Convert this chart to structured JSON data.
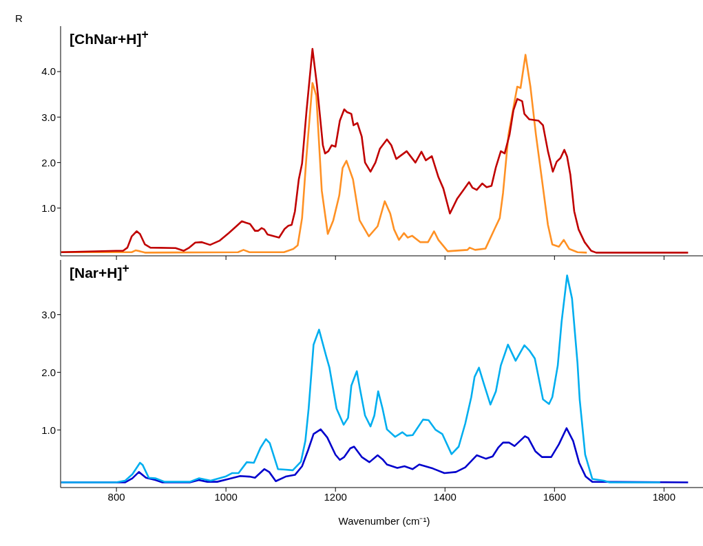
{
  "chart_data": [
    {
      "type": "line",
      "title": "[ChNar+H]$^{+}$",
      "ylabel": "R",
      "xlim": [
        698,
        1880
      ],
      "xticks": [
        800,
        1000,
        1200,
        1400,
        1600,
        1800
      ],
      "ylim": [
        -0.05,
        5.0
      ],
      "yticks": [
        {
          "value": 1,
          "label": "1.0"
        },
        {
          "value": 2,
          "label": "2.0"
        },
        {
          "value": 3,
          "label": "3.0"
        },
        {
          "value": 4,
          "label": "4.0"
        }
      ],
      "tick_labels": "y",
      "line_style": "solid",
      "series": [
        {
          "color": "#ff9124",
          "x": [
            699,
            828,
            835,
            843,
            852,
            1022,
            1032,
            1043,
            1106,
            1123,
            1131,
            1139,
            1147,
            1158,
            1165,
            1175,
            1186,
            1196,
            1207,
            1213,
            1220,
            1232,
            1244,
            1261,
            1277,
            1290,
            1300,
            1307,
            1316,
            1325,
            1332,
            1340,
            1355,
            1369,
            1380,
            1388,
            1405,
            1441,
            1445,
            1455,
            1474,
            1491,
            1500,
            1506,
            1516,
            1532,
            1538,
            1547,
            1556,
            1566,
            1577,
            1588,
            1596,
            1608,
            1617,
            1627,
            1642,
            1659
          ],
          "values": [
            0.03,
            0.03,
            0.07,
            0.05,
            0.02,
            0.03,
            0.08,
            0.03,
            0.03,
            0.1,
            0.18,
            0.78,
            2.13,
            3.75,
            3.47,
            1.38,
            0.43,
            0.73,
            1.28,
            1.88,
            2.04,
            1.63,
            0.73,
            0.38,
            0.6,
            1.15,
            0.88,
            0.53,
            0.3,
            0.45,
            0.35,
            0.39,
            0.25,
            0.25,
            0.49,
            0.3,
            0.05,
            0.08,
            0.13,
            0.08,
            0.11,
            0.55,
            0.78,
            1.33,
            2.62,
            3.67,
            3.64,
            4.37,
            3.67,
            2.62,
            1.63,
            0.63,
            0.2,
            0.15,
            0.3,
            0.1,
            0.03,
            0.02
          ]
        },
        {
          "color": "#c00000",
          "x": [
            699,
            799,
            812,
            820,
            828,
            837,
            843,
            852,
            862,
            908,
            923,
            933,
            944,
            956,
            971,
            988,
            1005,
            1019,
            1029,
            1036,
            1044,
            1053,
            1059,
            1065,
            1070,
            1076,
            1097,
            1107,
            1114,
            1120,
            1126,
            1133,
            1139,
            1147,
            1158,
            1166,
            1177,
            1181,
            1187,
            1193,
            1200,
            1208,
            1216,
            1221,
            1229,
            1233,
            1240,
            1248,
            1254,
            1264,
            1273,
            1281,
            1294,
            1302,
            1311,
            1330,
            1346,
            1357,
            1365,
            1376,
            1388,
            1397,
            1409,
            1422,
            1434,
            1444,
            1450,
            1458,
            1468,
            1476,
            1485,
            1493,
            1502,
            1509,
            1518,
            1525,
            1532,
            1541,
            1545,
            1554,
            1571,
            1579,
            1588,
            1597,
            1604,
            1611,
            1618,
            1623,
            1629,
            1636,
            1644,
            1655,
            1667,
            1676,
            1844
          ],
          "values": [
            0.03,
            0.06,
            0.06,
            0.13,
            0.38,
            0.49,
            0.43,
            0.2,
            0.13,
            0.12,
            0.06,
            0.13,
            0.24,
            0.25,
            0.19,
            0.28,
            0.45,
            0.6,
            0.71,
            0.68,
            0.65,
            0.5,
            0.5,
            0.56,
            0.53,
            0.42,
            0.35,
            0.54,
            0.61,
            0.63,
            0.93,
            1.63,
            1.98,
            3.12,
            4.5,
            3.72,
            2.38,
            2.2,
            2.25,
            2.38,
            2.35,
            2.92,
            3.17,
            3.11,
            3.07,
            2.82,
            2.87,
            2.57,
            2.0,
            1.8,
            2.0,
            2.3,
            2.51,
            2.38,
            2.08,
            2.25,
            2.0,
            2.24,
            2.05,
            2.14,
            1.68,
            1.43,
            0.88,
            1.2,
            1.4,
            1.57,
            1.45,
            1.4,
            1.54,
            1.46,
            1.49,
            1.9,
            2.25,
            2.2,
            2.62,
            3.15,
            3.4,
            3.35,
            3.07,
            2.95,
            2.92,
            2.82,
            2.25,
            1.8,
            2.02,
            2.1,
            2.28,
            2.13,
            1.73,
            0.93,
            0.53,
            0.25,
            0.06,
            0.02,
            0.02
          ]
        }
      ]
    },
    {
      "type": "line",
      "title": "[Nar+H]$^{+}$",
      "xlabel": "Wavenumber (cm⁻¹)",
      "xlim": [
        698,
        1880
      ],
      "xticks": [
        800,
        1000,
        1200,
        1400,
        1600,
        1800
      ],
      "ylim": [
        0,
        3.95
      ],
      "yticks": [
        {
          "value": 1,
          "label": "1.0"
        },
        {
          "value": 2,
          "label": "2.0"
        },
        {
          "value": 3,
          "label": "3.0"
        }
      ],
      "line_style": "solid",
      "series": [
        {
          "color": "#0000cc",
          "x": [
            699,
            816,
            829,
            841,
            854,
            871,
            884,
            934,
            951,
            966,
            984,
            1005,
            1026,
            1043,
            1053,
            1070,
            1079,
            1091,
            1109,
            1126,
            1139,
            1150,
            1160,
            1173,
            1185,
            1200,
            1208,
            1216,
            1227,
            1234,
            1248,
            1262,
            1277,
            1286,
            1294,
            1313,
            1326,
            1341,
            1353,
            1378,
            1399,
            1420,
            1437,
            1458,
            1475,
            1487,
            1497,
            1506,
            1517,
            1527,
            1546,
            1552,
            1565,
            1577,
            1594,
            1608,
            1622,
            1634,
            1645,
            1657,
            1669,
            1844
          ],
          "values": [
            0.09,
            0.09,
            0.16,
            0.27,
            0.17,
            0.13,
            0.09,
            0.09,
            0.13,
            0.1,
            0.1,
            0.15,
            0.2,
            0.19,
            0.17,
            0.32,
            0.27,
            0.11,
            0.19,
            0.22,
            0.37,
            0.65,
            0.93,
            1.01,
            0.87,
            0.57,
            0.48,
            0.53,
            0.68,
            0.71,
            0.53,
            0.44,
            0.56,
            0.49,
            0.4,
            0.34,
            0.37,
            0.32,
            0.4,
            0.33,
            0.25,
            0.27,
            0.35,
            0.56,
            0.5,
            0.54,
            0.69,
            0.78,
            0.78,
            0.72,
            0.89,
            0.86,
            0.63,
            0.53,
            0.53,
            0.75,
            1.03,
            0.81,
            0.43,
            0.19,
            0.1,
            0.09
          ]
        },
        {
          "color": "#00aeef",
          "x": [
            699,
            799,
            816,
            829,
            843,
            848,
            859,
            871,
            888,
            934,
            951,
            972,
            999,
            1011,
            1023,
            1038,
            1051,
            1063,
            1073,
            1080,
            1095,
            1109,
            1122,
            1137,
            1145,
            1151,
            1160,
            1170,
            1183,
            1189,
            1202,
            1215,
            1223,
            1229,
            1239,
            1244,
            1254,
            1264,
            1271,
            1278,
            1286,
            1294,
            1309,
            1322,
            1330,
            1341,
            1360,
            1370,
            1383,
            1395,
            1412,
            1425,
            1437,
            1448,
            1454,
            1462,
            1471,
            1483,
            1493,
            1502,
            1515,
            1529,
            1545,
            1554,
            1564,
            1579,
            1590,
            1596,
            1606,
            1613,
            1623,
            1632,
            1642,
            1646,
            1656,
            1669,
            1690,
            1701,
            1793
          ],
          "values": [
            0.09,
            0.09,
            0.12,
            0.23,
            0.43,
            0.39,
            0.17,
            0.16,
            0.1,
            0.1,
            0.16,
            0.12,
            0.19,
            0.25,
            0.25,
            0.44,
            0.43,
            0.69,
            0.84,
            0.77,
            0.32,
            0.31,
            0.3,
            0.45,
            0.81,
            1.37,
            2.48,
            2.74,
            2.28,
            2.08,
            1.37,
            1.09,
            1.21,
            1.77,
            2.02,
            1.75,
            1.25,
            1.06,
            1.25,
            1.67,
            1.37,
            1.01,
            0.88,
            0.96,
            0.9,
            0.91,
            1.18,
            1.17,
            1.0,
            0.93,
            0.58,
            0.71,
            1.11,
            1.57,
            1.92,
            2.08,
            1.8,
            1.44,
            1.67,
            2.12,
            2.48,
            2.2,
            2.47,
            2.38,
            2.24,
            1.53,
            1.45,
            1.57,
            2.12,
            2.88,
            3.68,
            3.28,
            2.16,
            1.53,
            0.57,
            0.15,
            0.12,
            0.09,
            0.09
          ]
        }
      ]
    }
  ]
}
